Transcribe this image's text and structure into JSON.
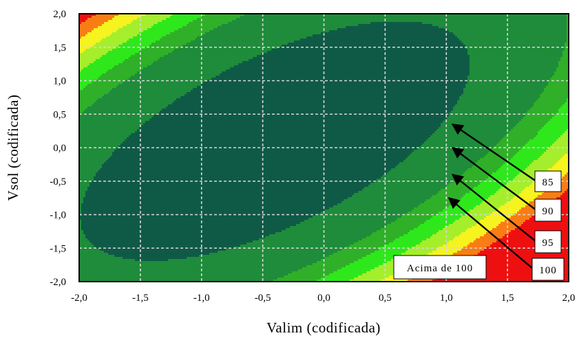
{
  "chart_data": {
    "type": "heatmap",
    "subtype": "contour",
    "title": "",
    "xlabel": "Valim (codificada)",
    "ylabel": "Vsol (codificada)",
    "xlim": [
      -2.0,
      2.0
    ],
    "ylim": [
      -2.0,
      2.0
    ],
    "x_ticks": [
      "-2,0",
      "-1,5",
      "-1,0",
      "-0,5",
      "0,0",
      "0,5",
      "1,0",
      "1,5",
      "2,0"
    ],
    "y_ticks": [
      "2,0",
      "1,5",
      "1,0",
      "0,5",
      "0,0",
      "-0,5",
      "-1,0",
      "-1,5",
      "-2,0"
    ],
    "grid": true,
    "contour_levels": [
      85,
      90,
      95,
      100
    ],
    "level_labels": [
      "85",
      "90",
      "95",
      "100"
    ],
    "region_label": "Acima de 100",
    "colors": {
      "below_70": "#0f5a46",
      "band_70_80": "#1e8c3a",
      "band_80_85": "#2fb028",
      "band_85_90": "#2ee81c",
      "band_90_95": "#a5ee2c",
      "band_95_100": "#f6f31e",
      "band_100_105": "#f97d14",
      "above_105": "#ee1010"
    },
    "arrow_targets": [
      {
        "level": "85",
        "x": 1.05,
        "y": 0.35
      },
      {
        "level": "90",
        "x": 1.05,
        "y": 0.0
      },
      {
        "level": "95",
        "x": 1.05,
        "y": -0.4
      },
      {
        "level": "100",
        "x": 1.02,
        "y": -0.75
      }
    ]
  }
}
